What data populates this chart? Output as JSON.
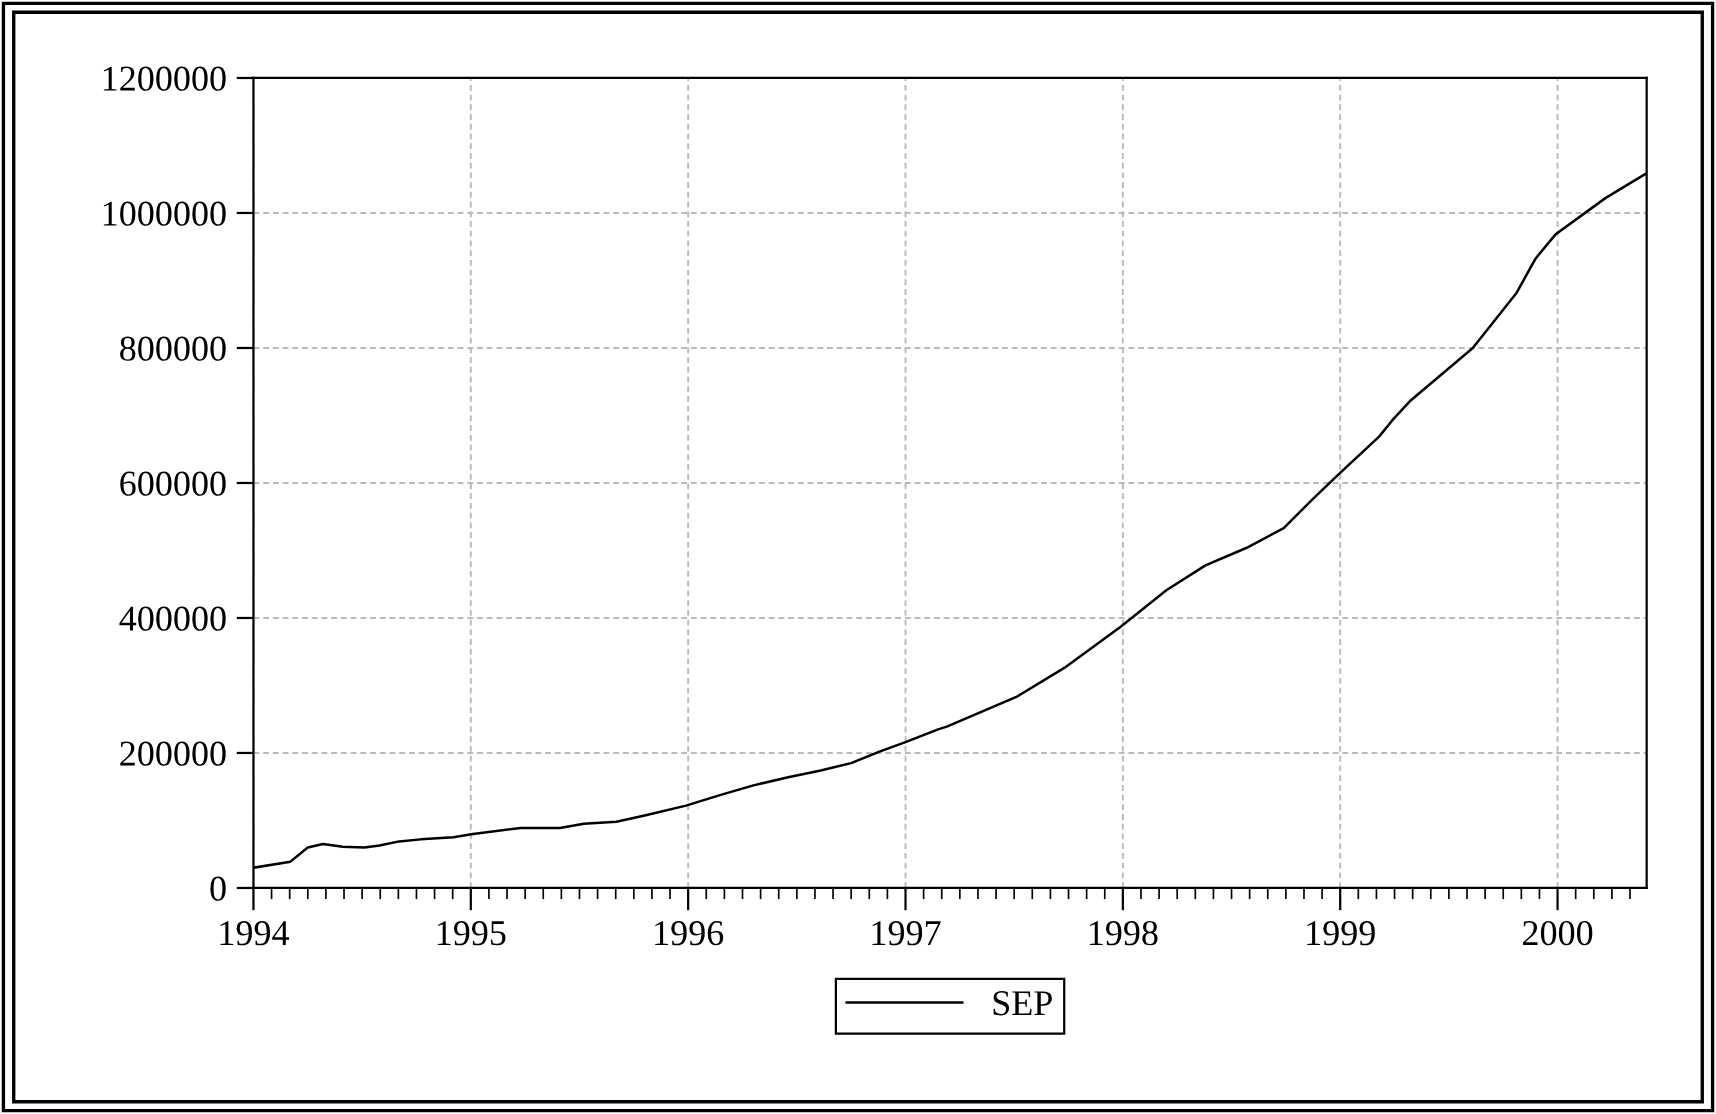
{
  "chart_data": {
    "type": "line",
    "x": [
      1994.0,
      1994.17,
      1994.25,
      1994.32,
      1994.41,
      1994.51,
      1994.58,
      1994.67,
      1994.77,
      1994.92,
      1995.01,
      1995.23,
      1995.41,
      1995.52,
      1995.67,
      1995.81,
      1995.99,
      1996.15,
      1996.3,
      1996.46,
      1996.61,
      1996.75,
      1996.88,
      1997.0,
      1997.15,
      1997.19,
      1997.51,
      1997.74,
      1997.99,
      1998.2,
      1998.38,
      1998.57,
      1998.74,
      1998.87,
      1998.99,
      1999.18,
      1999.24,
      1999.32,
      1999.61,
      1999.81,
      1999.9,
      1999.99,
      2000.22,
      2000.41
    ],
    "series": [
      {
        "name": "SEP",
        "color": "#000000",
        "values": [
          30000,
          39000,
          60000,
          65000,
          61000,
          60000,
          63000,
          69000,
          72000,
          75000,
          80000,
          89000,
          89000,
          95000,
          98000,
          108000,
          122000,
          138000,
          152000,
          164000,
          174000,
          185000,
          202000,
          216000,
          235000,
          239000,
          283000,
          328000,
          387000,
          441000,
          478000,
          504000,
          533000,
          575000,
          612000,
          669000,
          693000,
          721000,
          800000,
          881000,
          933000,
          968000,
          1022000,
          1059000
        ]
      }
    ],
    "xlim": [
      1994.0,
      2000.41
    ],
    "xticks": [
      1994,
      1995,
      1996,
      1997,
      1998,
      1999,
      2000
    ],
    "ylim": [
      0,
      1200000
    ],
    "yticks": [
      0,
      200000,
      400000,
      600000,
      800000,
      1000000,
      1200000
    ],
    "grid": true,
    "legend": "bottom",
    "line_style": "solid",
    "marker": "none"
  }
}
